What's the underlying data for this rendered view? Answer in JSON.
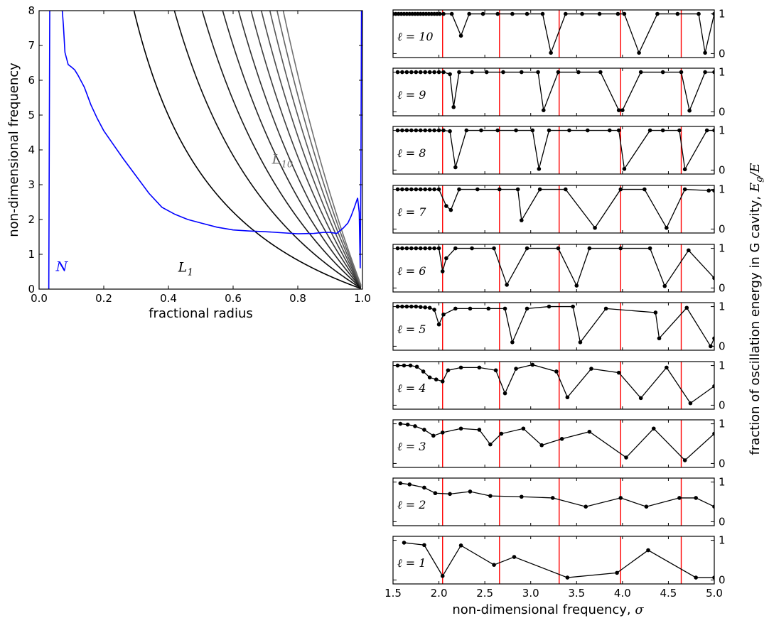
{
  "chart_data": [
    {
      "type": "line",
      "xlabel": "fractional radius",
      "ylabel": "non-dimensional frequency",
      "xlim": [
        0.0,
        1.0
      ],
      "ylim": [
        0,
        8
      ],
      "xticks": [
        "0.0",
        "0.2",
        "0.4",
        "0.6",
        "0.8",
        "1.0"
      ],
      "yticks": [
        "0",
        "1",
        "2",
        "3",
        "4",
        "5",
        "6",
        "7",
        "8"
      ],
      "lamb_scale": 2.35,
      "lamb_count": 10,
      "lamb_colors": [
        "#000000",
        "#0c0c0c",
        "#181818",
        "#252525",
        "#313131",
        "#3e3e3e",
        "#4a4a4a",
        "#565656",
        "#636363",
        "#707070"
      ],
      "labels": {
        "N": "N",
        "L1": "L",
        "L1_sub": "1",
        "L10": "L",
        "L10_sub": "10"
      },
      "label_colors": {
        "N": "#0000ff",
        "L1": "#000000",
        "L10": "#707070"
      },
      "series": [
        {
          "name": "N",
          "color": "#0000ff",
          "x": [
            0.03,
            0.033,
            0.036,
            0.04,
            0.045,
            0.05,
            0.055,
            0.06,
            0.065,
            0.07,
            0.075,
            0.08,
            0.09,
            0.1,
            0.11,
            0.12,
            0.14,
            0.16,
            0.18,
            0.2,
            0.23,
            0.26,
            0.3,
            0.34,
            0.38,
            0.42,
            0.46,
            0.5,
            0.55,
            0.6,
            0.65,
            0.7,
            0.75,
            0.8,
            0.85,
            0.88,
            0.9,
            0.92,
            0.94,
            0.955,
            0.965,
            0.975,
            0.985,
            0.99,
            0.993,
            0.995,
            0.997
          ],
          "y": [
            0.0,
            8.2,
            8.2,
            8.2,
            8.2,
            8.2,
            8.2,
            8.2,
            8.2,
            8.2,
            7.6,
            6.8,
            6.45,
            6.38,
            6.3,
            6.15,
            5.8,
            5.3,
            4.9,
            4.55,
            4.15,
            3.75,
            3.25,
            2.75,
            2.35,
            2.15,
            2.0,
            1.9,
            1.78,
            1.7,
            1.67,
            1.65,
            1.62,
            1.59,
            1.6,
            1.63,
            1.63,
            1.6,
            1.75,
            1.9,
            2.1,
            2.35,
            2.62,
            2.2,
            0.6,
            3.0,
            8.2
          ]
        }
      ]
    },
    {
      "type": "line",
      "xlabel": "non-dimensional frequency, ",
      "xlabel_symbol": "σ",
      "ylabel": "fraction of oscillation energy in G cavity, ",
      "ylabel_symbol": "E",
      "ylabel_symbol_sub": "g",
      "ylabel_symbol_tail": "/E",
      "xlim": [
        1.5,
        5.0
      ],
      "ylim": [
        -0.1,
        1.1
      ],
      "xticks": [
        "1.5",
        "2.0",
        "2.5",
        "3.0",
        "3.5",
        "4.0",
        "4.5",
        "5.0"
      ],
      "yticks": [
        "0",
        "1"
      ],
      "vlines": [
        2.04,
        2.66,
        3.31,
        3.98,
        4.64
      ],
      "vline_color": "#ff0000",
      "panels": [
        {
          "label": "ℓ = 10",
          "x": [
            1.5,
            1.53,
            1.56,
            1.59,
            1.62,
            1.65,
            1.68,
            1.71,
            1.74,
            1.77,
            1.8,
            1.83,
            1.86,
            1.89,
            1.92,
            1.95,
            1.98,
            2.01,
            2.05,
            2.14,
            2.24,
            2.33,
            2.48,
            2.64,
            2.8,
            2.96,
            3.13,
            3.22,
            3.38,
            3.56,
            3.75,
            3.95,
            4.02,
            4.18,
            4.38,
            4.6,
            4.83,
            4.9,
            5.0
          ],
          "y": [
            1,
            1,
            1,
            1,
            1,
            1,
            1,
            1,
            1,
            1,
            1,
            1,
            1,
            1,
            1,
            1,
            1,
            1,
            1,
            1,
            0.45,
            1,
            1,
            1,
            1,
            1,
            1,
            0.02,
            1,
            1,
            1,
            1,
            1,
            0.02,
            1,
            1,
            1,
            0.02,
            1
          ]
        },
        {
          "label": "ℓ = 9",
          "x": [
            1.55,
            1.6,
            1.65,
            1.7,
            1.75,
            1.8,
            1.85,
            1.9,
            1.95,
            2.0,
            2.05,
            2.12,
            2.16,
            2.22,
            2.36,
            2.52,
            2.7,
            2.9,
            3.08,
            3.14,
            3.3,
            3.52,
            3.76,
            3.96,
            4.0,
            4.2,
            4.44,
            4.64,
            4.73,
            4.9,
            5.0
          ],
          "y": [
            1,
            1,
            1,
            1,
            1,
            1,
            1,
            1,
            1,
            1,
            1,
            0.95,
            0.12,
            1,
            1,
            1,
            1,
            1,
            1,
            0.04,
            1,
            1,
            1,
            0.04,
            0.04,
            1,
            1,
            1,
            0.03,
            1,
            1
          ]
        },
        {
          "label": "ℓ = 8",
          "x": [
            1.55,
            1.6,
            1.65,
            1.7,
            1.75,
            1.8,
            1.85,
            1.9,
            1.95,
            2.0,
            2.05,
            2.12,
            2.18,
            2.3,
            2.46,
            2.64,
            2.84,
            3.02,
            3.09,
            3.2,
            3.42,
            3.62,
            3.86,
            3.96,
            4.02,
            4.3,
            4.44,
            4.62,
            4.68,
            4.92,
            5.0
          ],
          "y": [
            1,
            1,
            1,
            1,
            1,
            1,
            1,
            1,
            1,
            1,
            1,
            0.98,
            0.07,
            1,
            1,
            1,
            1,
            1,
            0.03,
            1,
            1,
            1,
            1,
            1,
            0.03,
            1,
            1,
            1,
            0.02,
            1,
            1
          ]
        },
        {
          "label": "ℓ = 7",
          "x": [
            1.55,
            1.6,
            1.65,
            1.7,
            1.75,
            1.8,
            1.85,
            1.9,
            1.95,
            2.0,
            2.08,
            2.13,
            2.22,
            2.42,
            2.66,
            2.86,
            2.9,
            3.1,
            3.38,
            3.7,
            3.98,
            4.24,
            4.48,
            4.68,
            4.94,
            5.0
          ],
          "y": [
            1,
            1,
            1,
            1,
            1,
            1,
            1,
            1,
            1,
            1,
            0.58,
            0.48,
            1,
            1,
            1,
            1,
            0.22,
            1,
            1,
            0.03,
            1,
            1,
            0.03,
            1,
            0.97,
            0.97
          ]
        },
        {
          "label": "ℓ = 6",
          "x": [
            1.55,
            1.6,
            1.65,
            1.7,
            1.75,
            1.8,
            1.85,
            1.9,
            1.95,
            2.0,
            2.04,
            2.08,
            2.18,
            2.36,
            2.6,
            2.74,
            2.96,
            3.3,
            3.5,
            3.64,
            3.98,
            4.3,
            4.46,
            4.72,
            5.0
          ],
          "y": [
            1,
            1,
            1,
            1,
            1,
            1,
            1,
            1,
            1,
            1,
            0.42,
            0.75,
            1,
            1,
            1,
            0.08,
            1,
            1,
            0.06,
            1,
            1,
            1,
            0.05,
            0.95,
            0.25
          ]
        },
        {
          "label": "ℓ = 5",
          "x": [
            1.55,
            1.6,
            1.65,
            1.7,
            1.75,
            1.8,
            1.85,
            1.9,
            1.95,
            2.0,
            2.05,
            2.18,
            2.34,
            2.54,
            2.72,
            2.8,
            2.96,
            3.2,
            3.46,
            3.54,
            3.82,
            4.36,
            4.4,
            4.7,
            4.96,
            5.0
          ],
          "y": [
            1,
            1,
            1,
            1,
            1,
            0.99,
            0.98,
            0.97,
            0.92,
            0.55,
            0.8,
            0.95,
            0.95,
            0.95,
            0.95,
            0.1,
            0.95,
            1,
            1,
            0.1,
            0.95,
            0.85,
            0.2,
            0.97,
            0.0,
            0.2
          ]
        },
        {
          "label": "ℓ = 4",
          "x": [
            1.55,
            1.62,
            1.69,
            1.76,
            1.83,
            1.9,
            1.97,
            2.04,
            2.1,
            2.24,
            2.44,
            2.62,
            2.72,
            2.84,
            3.02,
            3.28,
            3.4,
            3.66,
            3.96,
            4.2,
            4.48,
            4.74,
            5.0
          ],
          "y": [
            1,
            1,
            1,
            0.97,
            0.85,
            0.7,
            0.65,
            0.6,
            0.88,
            0.95,
            0.95,
            0.88,
            0.3,
            0.92,
            1.02,
            0.85,
            0.2,
            0.92,
            0.82,
            0.18,
            0.95,
            0.05,
            0.48
          ]
        },
        {
          "label": "ℓ = 3",
          "x": [
            1.58,
            1.66,
            1.74,
            1.84,
            1.94,
            2.04,
            2.24,
            2.44,
            2.56,
            2.68,
            2.92,
            3.12,
            3.34,
            3.64,
            4.04,
            4.34,
            4.68,
            5.0
          ],
          "y": [
            1.0,
            0.98,
            0.94,
            0.85,
            0.7,
            0.78,
            0.88,
            0.85,
            0.48,
            0.75,
            0.88,
            0.46,
            0.62,
            0.8,
            0.15,
            0.88,
            0.08,
            0.75
          ]
        },
        {
          "label": "ℓ = 2",
          "x": [
            1.58,
            1.68,
            1.84,
            1.96,
            2.12,
            2.34,
            2.56,
            2.9,
            3.24,
            3.6,
            3.98,
            4.26,
            4.62,
            4.8,
            5.0
          ],
          "y": [
            0.97,
            0.94,
            0.86,
            0.72,
            0.7,
            0.76,
            0.65,
            0.63,
            0.6,
            0.38,
            0.6,
            0.38,
            0.6,
            0.6,
            0.38
          ]
        },
        {
          "label": "ℓ = 1",
          "x": [
            1.62,
            1.84,
            2.04,
            2.24,
            2.6,
            2.82,
            3.4,
            3.94,
            4.28,
            4.8,
            5.0
          ],
          "y": [
            0.94,
            0.88,
            0.1,
            0.87,
            0.38,
            0.58,
            0.06,
            0.18,
            0.75,
            0.06,
            0.06
          ]
        }
      ]
    }
  ]
}
